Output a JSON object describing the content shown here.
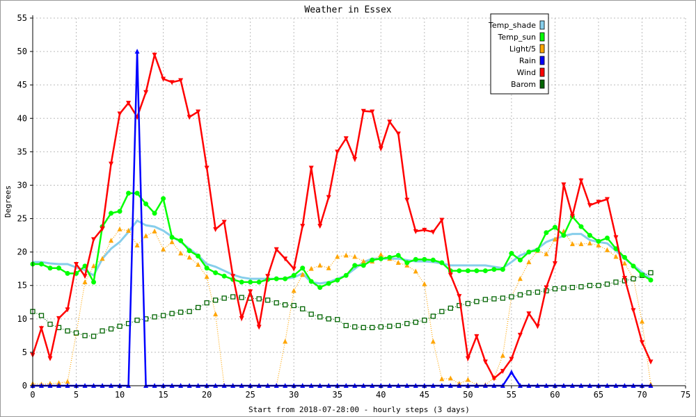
{
  "chart_data": {
    "type": "line",
    "title": "Weather in Essex",
    "xlabel": "Start from 2018-07-28:00 - hourly steps (3 days)",
    "ylabel": "Degrees",
    "xlim": [
      0,
      75
    ],
    "ylim": [
      0,
      55
    ],
    "x_ticks": [
      0,
      5,
      10,
      15,
      20,
      25,
      30,
      35,
      40,
      45,
      50,
      55,
      60,
      65,
      70,
      75
    ],
    "y_ticks": [
      0,
      5,
      10,
      15,
      20,
      25,
      30,
      35,
      40,
      45,
      50,
      55
    ],
    "grid": true,
    "legend_position": "top-right",
    "x": [
      0,
      1,
      2,
      3,
      4,
      5,
      6,
      7,
      8,
      9,
      10,
      11,
      12,
      13,
      14,
      15,
      16,
      17,
      18,
      19,
      20,
      21,
      22,
      23,
      24,
      25,
      26,
      27,
      28,
      29,
      30,
      31,
      32,
      33,
      34,
      35,
      36,
      37,
      38,
      39,
      40,
      41,
      42,
      43,
      44,
      45,
      46,
      47,
      48,
      49,
      50,
      51,
      52,
      53,
      54,
      55,
      56,
      57,
      58,
      59,
      60,
      61,
      62,
      63,
      64,
      65,
      66,
      67,
      68,
      69,
      70,
      71
    ],
    "series": [
      {
        "name": "Temp_shade",
        "color": "#87ceeb",
        "marker": "none",
        "line": "solid",
        "values": [
          18.5,
          18.5,
          18.3,
          18.2,
          18.2,
          17.7,
          17.3,
          16.5,
          19.0,
          20.5,
          21.5,
          23.0,
          24.7,
          24.0,
          23.8,
          23.2,
          22.3,
          21.5,
          20.5,
          19.5,
          18.2,
          17.8,
          17.2,
          16.6,
          16.2,
          16.0,
          16.0,
          16.0,
          16.0,
          16.0,
          16.2,
          16.8,
          15.5,
          15.3,
          15.5,
          16.0,
          16.5,
          17.5,
          18.5,
          19.0,
          19.0,
          19.0,
          19.0,
          18.8,
          18.6,
          18.6,
          18.5,
          18.3,
          18.0,
          18.0,
          18.0,
          18.0,
          18.0,
          17.8,
          17.6,
          18.5,
          19.5,
          20.0,
          20.5,
          21.5,
          22.0,
          22.4,
          22.7,
          22.7,
          21.8,
          21.5,
          21.3,
          20.2,
          19.0,
          18.0,
          17.0,
          16.0
        ]
      },
      {
        "name": "Temp_sun",
        "color": "#00ff00",
        "marker": "circle",
        "line": "solid",
        "values": [
          18.2,
          18.2,
          17.6,
          17.6,
          16.8,
          16.8,
          17.9,
          15.5,
          23.8,
          25.8,
          26.1,
          28.8,
          28.8,
          27.2,
          25.8,
          28.0,
          22.2,
          21.7,
          20.2,
          19.4,
          17.6,
          16.9,
          16.4,
          15.9,
          15.5,
          15.5,
          15.5,
          15.9,
          16.0,
          16.0,
          16.5,
          17.6,
          15.6,
          14.7,
          15.3,
          15.8,
          16.5,
          18.0,
          18.0,
          18.8,
          19.0,
          19.2,
          19.5,
          18.4,
          18.9,
          18.9,
          18.8,
          18.4,
          17.2,
          17.2,
          17.2,
          17.2,
          17.2,
          17.4,
          17.4,
          19.8,
          18.8,
          20.0,
          20.3,
          22.9,
          23.7,
          22.5,
          25.3,
          23.8,
          22.5,
          21.6,
          22.1,
          20.5,
          19.2,
          17.9,
          16.6,
          15.8
        ]
      },
      {
        "name": "Light/5",
        "color": "#ffa500",
        "marker": "triangle",
        "line": "dotted",
        "values": [
          0.3,
          0.2,
          0.3,
          0.4,
          0.6,
          7.8,
          15.5,
          17.9,
          19.0,
          21.7,
          23.4,
          23.2,
          21.0,
          22.4,
          23.1,
          20.4,
          21.5,
          19.8,
          19.2,
          18.1,
          16.3,
          10.7,
          0,
          0,
          0,
          0,
          0,
          0,
          0,
          6.6,
          14.2,
          16.6,
          17.5,
          18.0,
          17.6,
          19.3,
          19.5,
          19.3,
          18.6,
          18.6,
          19.6,
          19.0,
          18.4,
          18.0,
          17.1,
          15.2,
          6.6,
          1.0,
          1.1,
          0.3,
          0.9,
          0.1,
          0.1,
          1.2,
          4.5,
          13.3,
          16.0,
          18.5,
          20.2,
          19.7,
          21.9,
          23.1,
          21.2,
          21.2,
          21.3,
          21.0,
          20.3,
          19.3,
          18.3,
          16.1,
          9.6,
          0.2
        ]
      },
      {
        "name": "Rain",
        "color": "#0000ff",
        "marker": "triangle",
        "line": "solid",
        "values": [
          0,
          0,
          0,
          0,
          0,
          0,
          0,
          0,
          0,
          0,
          0,
          0,
          50,
          0,
          0,
          0,
          0,
          0,
          0,
          0,
          0,
          0,
          0,
          0,
          0,
          0,
          0,
          0,
          0,
          0,
          0,
          0,
          0,
          0,
          0,
          0,
          0,
          0,
          0,
          0,
          0,
          0,
          0,
          0,
          0,
          0,
          0,
          0,
          0,
          0,
          0,
          0,
          0,
          0,
          0,
          2.0,
          0,
          0,
          0,
          0,
          0,
          0,
          0,
          0,
          0,
          0,
          0,
          0,
          0,
          0,
          0,
          0
        ]
      },
      {
        "name": "Wind",
        "color": "#ff0000",
        "marker": "triangle-down",
        "line": "solid",
        "values": [
          4.6,
          8.6,
          4.1,
          10.1,
          11.4,
          18.2,
          16.4,
          21.9,
          23.5,
          33.2,
          40.7,
          42.3,
          40.2,
          43.9,
          49.5,
          45.9,
          45.4,
          45.7,
          40.2,
          41.0,
          32.6,
          23.4,
          24.5,
          16.4,
          10.1,
          14.1,
          8.8,
          16.4,
          20.4,
          19.0,
          17.5,
          23.9,
          32.6,
          23.9,
          28.2,
          35.0,
          37.0,
          33.9,
          41.1,
          41.0,
          35.5,
          39.5,
          37.7,
          27.8,
          23.1,
          23.3,
          23.0,
          24.8,
          16.6,
          13.4,
          4.1,
          7.4,
          3.6,
          1.1,
          2.2,
          4.0,
          7.6,
          10.8,
          8.9,
          14.7,
          18.3,
          30.1,
          25.4,
          30.7,
          27.0,
          27.5,
          27.9,
          22.2,
          16.1,
          11.3,
          6.5,
          3.6
        ]
      },
      {
        "name": "Barom",
        "color": "#006400",
        "marker": "square",
        "line": "dotted",
        "values": [
          11.1,
          10.5,
          9.2,
          8.7,
          8.2,
          7.9,
          7.5,
          7.4,
          8.2,
          8.5,
          8.9,
          9.3,
          9.8,
          10.0,
          10.3,
          10.5,
          10.8,
          11.0,
          11.1,
          11.7,
          12.4,
          12.8,
          13.1,
          13.3,
          13.2,
          13.1,
          13.0,
          12.8,
          12.4,
          12.1,
          12.0,
          11.5,
          10.7,
          10.3,
          10.0,
          9.9,
          9.0,
          8.8,
          8.7,
          8.7,
          8.8,
          8.9,
          9.0,
          9.3,
          9.5,
          9.8,
          10.4,
          11.1,
          11.6,
          12.0,
          12.3,
          12.6,
          12.9,
          13.0,
          13.1,
          13.3,
          13.6,
          13.9,
          14.0,
          14.2,
          14.5,
          14.6,
          14.7,
          14.8,
          15.0,
          15.0,
          15.2,
          15.5,
          15.7,
          16.0,
          16.5,
          16.9
        ]
      }
    ]
  },
  "colors": {
    "background": "#ffffff",
    "grid": "#bbbbbb",
    "frame": "#000000"
  }
}
